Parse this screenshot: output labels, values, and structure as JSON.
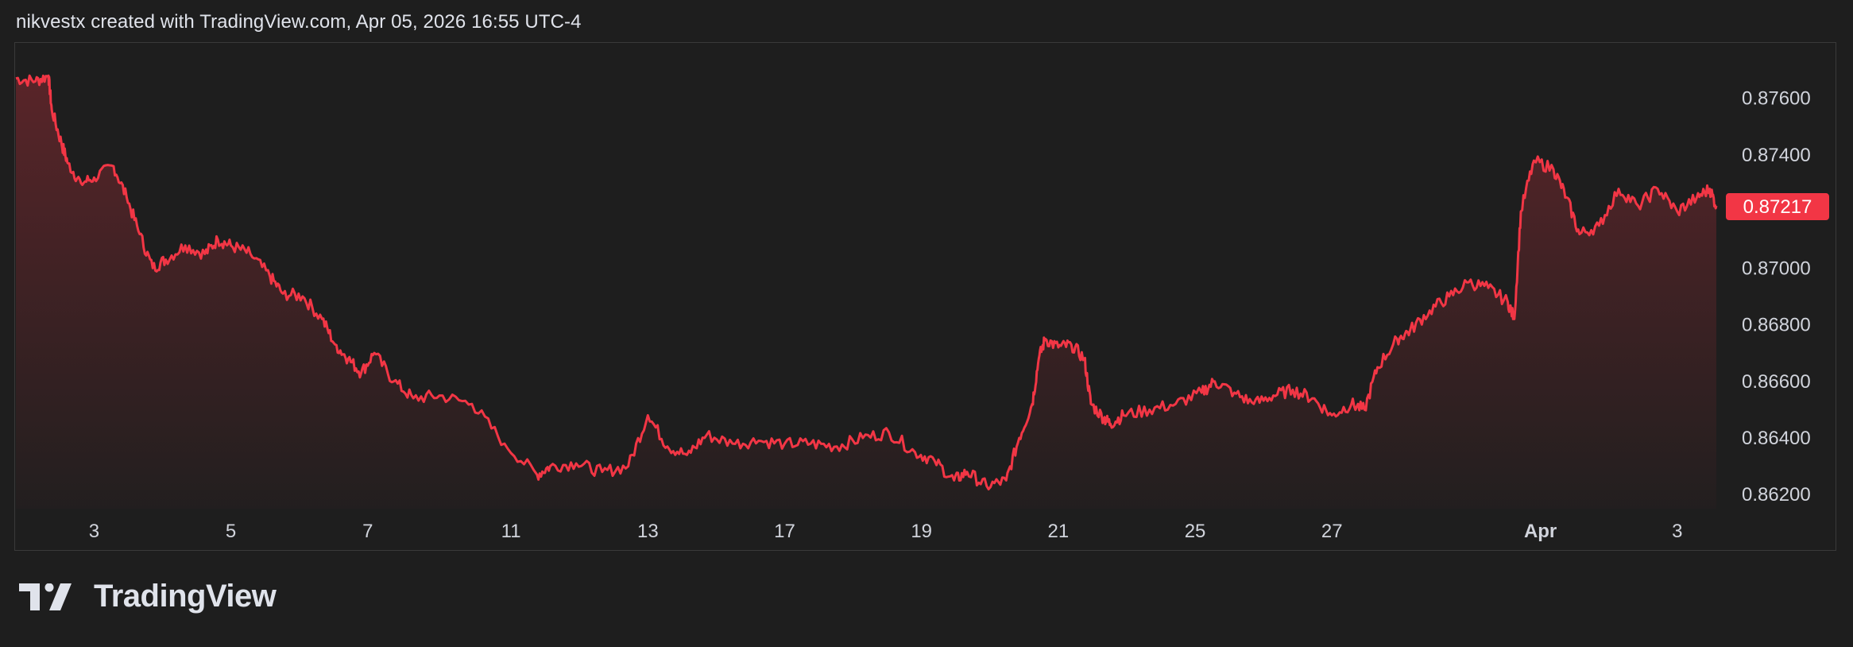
{
  "header": {
    "text": "nikvestx created with TradingView.com, Apr 05, 2026 16:55 UTC-4"
  },
  "brand": {
    "name": "TradingView",
    "logo_icon": "tradingview-logo-icon"
  },
  "colors": {
    "background": "#1e1e1e",
    "line": "#f23645",
    "price_tag": "#f23645",
    "grid_border": "#3a3a3a",
    "text": "#d1d4dc"
  },
  "chart_data": {
    "type": "area",
    "title": "",
    "xlabel": "",
    "ylabel": "",
    "ylim": [
      0.8615,
      0.8779
    ],
    "y_ticks": [
      "0.87600",
      "0.87400",
      "0.87000",
      "0.86800",
      "0.86600",
      "0.86400",
      "0.86200"
    ],
    "x_ticks": [
      {
        "label": "3",
        "x": 1.2
      },
      {
        "label": "5",
        "x": 3.3
      },
      {
        "label": "7",
        "x": 5.4
      },
      {
        "label": "11",
        "x": 7.6
      },
      {
        "label": "13",
        "x": 9.7
      },
      {
        "label": "17",
        "x": 11.8
      },
      {
        "label": "19",
        "x": 13.9
      },
      {
        "label": "21",
        "x": 16.0
      },
      {
        "label": "25",
        "x": 18.1
      },
      {
        "label": "27",
        "x": 20.2
      },
      {
        "label": "Apr",
        "x": 23.4,
        "bold": true
      },
      {
        "label": "3",
        "x": 25.5
      }
    ],
    "last_price": "0.87217",
    "series": [
      {
        "x": [
          0,
          0.3,
          0.5,
          0.55,
          0.7,
          0.8,
          1.0,
          1.2,
          1.5,
          1.7,
          1.9,
          2.1,
          2.3,
          2.6,
          2.9,
          3.1,
          3.3,
          3.6,
          3.9,
          4.1,
          4.4,
          4.7,
          4.9,
          5.1,
          5.3,
          5.5,
          5.8,
          6.1,
          6.5,
          7.0,
          7.5,
          8.0,
          8.2,
          8.6,
          9.0,
          9.4,
          9.7,
          10.0,
          10.3,
          10.6,
          11.0,
          11.4,
          11.8,
          12.2,
          12.6,
          13.0,
          13.4,
          13.8,
          14.1,
          14.4,
          14.6,
          14.9,
          15.2,
          15.4,
          15.6,
          15.7,
          15.8,
          16.0,
          16.2,
          16.4,
          16.5,
          16.7,
          16.8,
          17.0,
          17.4,
          17.8,
          18.2,
          18.4,
          18.7,
          19.0,
          19.3,
          19.6,
          19.9,
          20.2,
          20.5,
          20.7,
          20.9,
          21.2,
          21.4,
          21.7,
          22.0,
          22.3,
          22.6,
          22.9,
          23.0,
          23.1,
          23.3,
          23.6,
          23.8,
          24.0,
          24.3,
          24.6,
          24.9,
          25.2,
          25.5,
          25.8,
          26.0,
          26.1
        ],
        "y": [
          0.8767,
          0.8766,
          0.8768,
          0.8756,
          0.8744,
          0.8737,
          0.873,
          0.8732,
          0.8736,
          0.8725,
          0.8712,
          0.87,
          0.8703,
          0.8708,
          0.8705,
          0.871,
          0.8708,
          0.8705,
          0.8697,
          0.8691,
          0.869,
          0.8682,
          0.8673,
          0.8668,
          0.8663,
          0.867,
          0.866,
          0.8654,
          0.8655,
          0.8652,
          0.8638,
          0.8627,
          0.863,
          0.8631,
          0.8628,
          0.863,
          0.8648,
          0.8637,
          0.8634,
          0.8641,
          0.8638,
          0.8639,
          0.8638,
          0.8638,
          0.8637,
          0.864,
          0.8642,
          0.8635,
          0.8632,
          0.8625,
          0.8628,
          0.8623,
          0.8625,
          0.864,
          0.8652,
          0.8668,
          0.8675,
          0.8672,
          0.8673,
          0.8668,
          0.8652,
          0.8647,
          0.8645,
          0.8648,
          0.865,
          0.8652,
          0.8656,
          0.866,
          0.8656,
          0.8652,
          0.8655,
          0.8657,
          0.8654,
          0.8648,
          0.8652,
          0.865,
          0.8665,
          0.8675,
          0.8678,
          0.8685,
          0.869,
          0.8695,
          0.8693,
          0.8688,
          0.8682,
          0.872,
          0.8738,
          0.8735,
          0.8725,
          0.8712,
          0.8715,
          0.8728,
          0.8722,
          0.8728,
          0.872,
          0.8725,
          0.8728,
          0.8722
        ]
      }
    ]
  }
}
